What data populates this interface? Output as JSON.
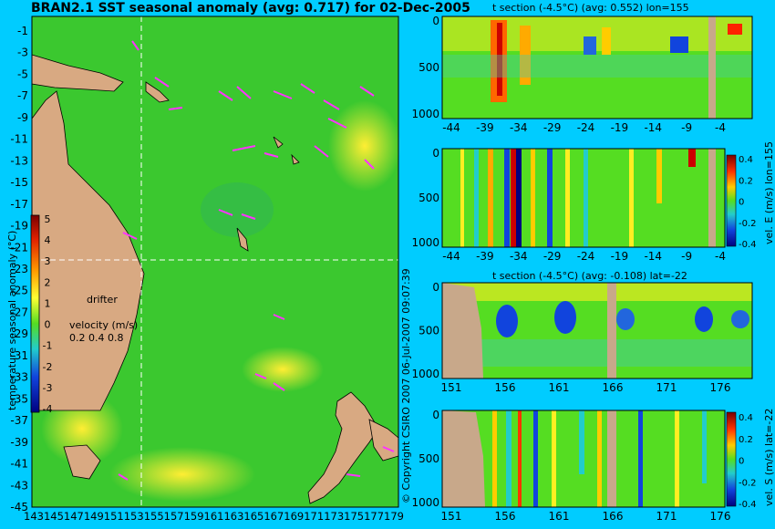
{
  "main_title": "BRAN2.1 SST seasonal anomaly (avg: 0.717) for 02-Dec-2005",
  "copyright": "© Copyright CSIRO 2007  06-Jul-2007 09:07:39",
  "colors": {
    "background": "#00ccff",
    "land": "#d8a982",
    "ocean": "#3bc82f",
    "drifter": "#ff33ff",
    "gap": "#c8a88a"
  },
  "chart_data": [
    {
      "type": "heatmap",
      "title": "BRAN2.1 SST seasonal anomaly (avg: 0.717) for 02-Dec-2005",
      "x_ticks": [
        "143",
        "145",
        "147",
        "149",
        "151",
        "153",
        "155",
        "157",
        "159",
        "161",
        "163",
        "165",
        "167",
        "169",
        "171",
        "173",
        "175",
        "177",
        "179"
      ],
      "y_ticks": [
        "-1",
        "-3",
        "-5",
        "-7",
        "-9",
        "-11",
        "-13",
        "-15",
        "-17",
        "-19",
        "-21",
        "-23",
        "-25",
        "-27",
        "-29",
        "-31",
        "-33",
        "-35",
        "-37",
        "-39",
        "-41",
        "-43",
        "-45"
      ],
      "xlim": [
        143,
        180
      ],
      "ylim": [
        -45,
        0
      ],
      "crosshair": {
        "lon": 155,
        "lat": -22
      },
      "colorbar": {
        "label": "temperature seasonal anomaly (°C)",
        "ticks": [
          "5",
          "4",
          "3",
          "2",
          "1",
          "0",
          "-1",
          "-2",
          "-3",
          "-4"
        ],
        "range": [
          -4,
          5
        ]
      },
      "drifter_legend": {
        "label": "drifter",
        "velocity_label": "velocity (m/s)",
        "velocity_values": "0.2 0.4 0.8"
      }
    },
    {
      "type": "heatmap",
      "title": "t section (-4.5°C) (avg: 0.552) lon=155",
      "x_ticks": [
        "-44",
        "-39",
        "-34",
        "-29",
        "-24",
        "-19",
        "-14",
        "-9",
        "-4"
      ],
      "y_ticks": [
        "0",
        "500",
        "1000"
      ],
      "xlim": [
        -45,
        0
      ],
      "ylim": [
        1000,
        0
      ]
    },
    {
      "type": "heatmap",
      "title": "",
      "x_ticks": [
        "-44",
        "-39",
        "-34",
        "-29",
        "-24",
        "-19",
        "-14",
        "-9",
        "-4"
      ],
      "y_ticks": [
        "0",
        "500",
        "1000"
      ],
      "xlim": [
        -45,
        0
      ],
      "ylim": [
        1000,
        0
      ],
      "colorbar": {
        "label": "vel. E (m/s) lon=155",
        "ticks": [
          "0.4",
          "0.2",
          "0",
          "-0.2",
          "-0.4"
        ],
        "range": [
          -0.4,
          0.4
        ]
      }
    },
    {
      "type": "heatmap",
      "title": "t section (-4.5°C) (avg: -0.108) lat=-22",
      "x_ticks": [
        "151",
        "156",
        "161",
        "166",
        "171",
        "176"
      ],
      "y_ticks": [
        "0",
        "500",
        "1000"
      ],
      "xlim": [
        150,
        180
      ],
      "ylim": [
        1000,
        0
      ]
    },
    {
      "type": "heatmap",
      "title": "",
      "x_ticks": [
        "151",
        "156",
        "161",
        "166",
        "171",
        "176"
      ],
      "y_ticks": [
        "0",
        "500",
        "1000"
      ],
      "xlim": [
        150,
        180
      ],
      "ylim": [
        1000,
        0
      ],
      "colorbar": {
        "label": "vel. S (m/s) lat=-22",
        "ticks": [
          "0.4",
          "0.2",
          "0",
          "-0.2",
          "-0.4"
        ],
        "range": [
          -0.4,
          0.4
        ]
      }
    }
  ]
}
